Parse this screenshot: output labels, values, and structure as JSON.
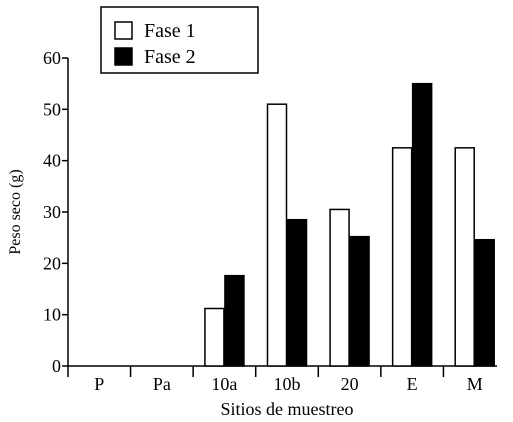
{
  "chart_data": {
    "type": "bar",
    "title": "",
    "xlabel": "Sitios de muestreo",
    "ylabel": "Peso seco (g)",
    "ylim": [
      0,
      60
    ],
    "yticks": [
      0,
      10,
      20,
      30,
      40,
      50,
      60
    ],
    "categories": [
      "P",
      "Pa",
      "10a",
      "10b",
      "20",
      "E",
      "M"
    ],
    "series": [
      {
        "name": "Fase 1",
        "color": "#ffffff",
        "values": [
          0,
          0,
          11.2,
          51,
          30.5,
          42.5,
          42.5
        ]
      },
      {
        "name": "Fase 2",
        "color": "#000000",
        "values": [
          0,
          0,
          17.6,
          28.5,
          25.2,
          55,
          24.6
        ]
      }
    ],
    "grid": false,
    "legend_position": "top-left"
  }
}
